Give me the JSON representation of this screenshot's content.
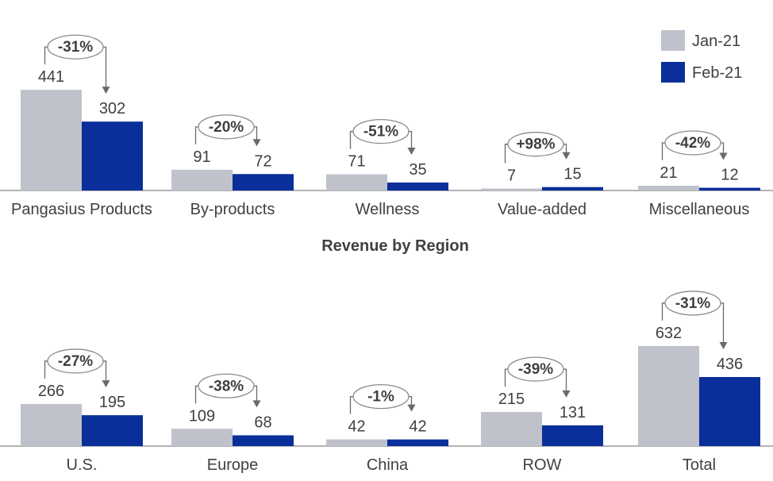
{
  "chart_data": [
    {
      "type": "bar",
      "title": "",
      "categories": [
        "Pangasius Products",
        "By-products",
        "Wellness",
        "Value-added",
        "Miscellaneous"
      ],
      "series": [
        {
          "name": "Jan-21",
          "values": [
            441,
            91,
            71,
            7,
            21
          ]
        },
        {
          "name": "Feb-21",
          "values": [
            302,
            72,
            35,
            15,
            12
          ]
        }
      ],
      "changes": [
        "-31%",
        "-20%",
        "-51%",
        "+98%",
        "-42%"
      ],
      "legend": "top-right"
    },
    {
      "type": "bar",
      "title": "Revenue by Region",
      "categories": [
        "U.S.",
        "Europe",
        "China",
        "ROW",
        "Total"
      ],
      "series": [
        {
          "name": "Jan-21",
          "values": [
            266,
            109,
            42,
            215,
            632
          ]
        },
        {
          "name": "Feb-21",
          "values": [
            195,
            68,
            42,
            131,
            436
          ]
        }
      ],
      "changes": [
        "-27%",
        "-38%",
        "-1%",
        "-39%",
        "-31%"
      ]
    }
  ],
  "colors": {
    "jan": "#bfc1cb",
    "feb": "#0a2f9a",
    "axis": "#9a9a9a",
    "text": "#404040"
  }
}
